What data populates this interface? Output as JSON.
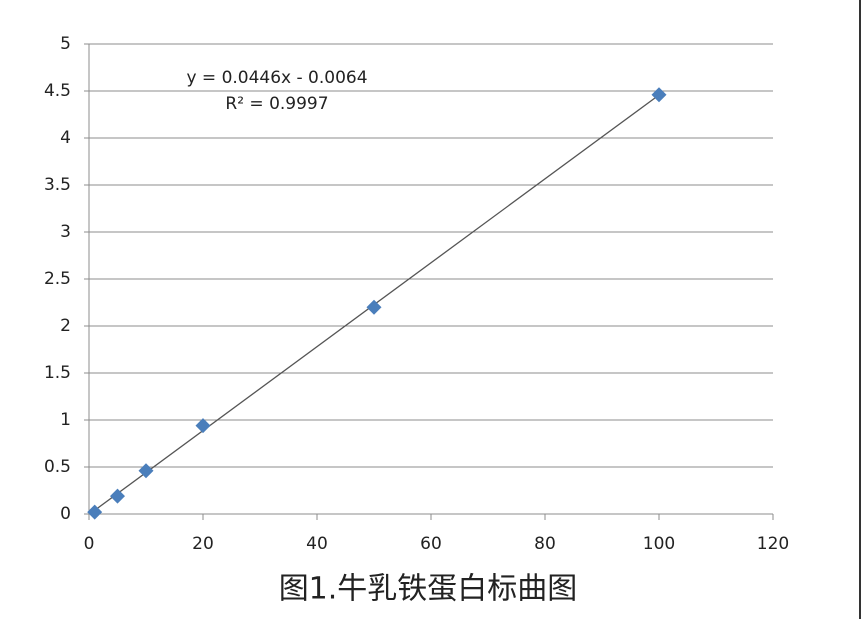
{
  "chart_data": {
    "type": "scatter",
    "title": "图1.牛乳铁蛋白标曲图",
    "annotations": [
      "y = 0.0446x - 0.0064",
      "R² = 0.9997"
    ],
    "trendline": "linear",
    "series": [
      {
        "name": "",
        "color": "#4a7ebb",
        "x": [
          1,
          5,
          10,
          20,
          50,
          100
        ],
        "values": [
          0.02,
          0.19,
          0.46,
          0.94,
          2.2,
          4.46
        ]
      }
    ],
    "xlim": [
      0,
      120
    ],
    "xticks": [
      0,
      20,
      40,
      60,
      80,
      100,
      120
    ],
    "ylim": [
      0,
      5
    ],
    "yticks": [
      0,
      0.5,
      1,
      1.5,
      2,
      2.5,
      3,
      3.5,
      4,
      4.5,
      5
    ],
    "grid": true
  }
}
